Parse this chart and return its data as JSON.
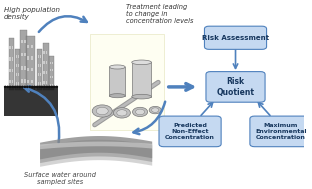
{
  "bg_color": "#ffffff",
  "text_high_pop": "High population\ndensity",
  "text_surface_water": "Surface water around\nsampled sites",
  "text_treatment": "Treatment leading\nto change in\nconcentration levels",
  "box_ra_label": "Risk Assessment",
  "box_rq_label": "Risk\nQuotient",
  "box_pnec_label": "Predicted\nNon-Effect\nConcentration",
  "box_mec_label": "Maximum\nEnvironmental\nConcentration",
  "box_face_color": "#c5d9f1",
  "box_edge_color": "#4f81bd",
  "box_text_color": "#17375e",
  "arrow_color": "#4f81bd",
  "figsize": [
    3.12,
    1.89
  ],
  "dpi": 100
}
